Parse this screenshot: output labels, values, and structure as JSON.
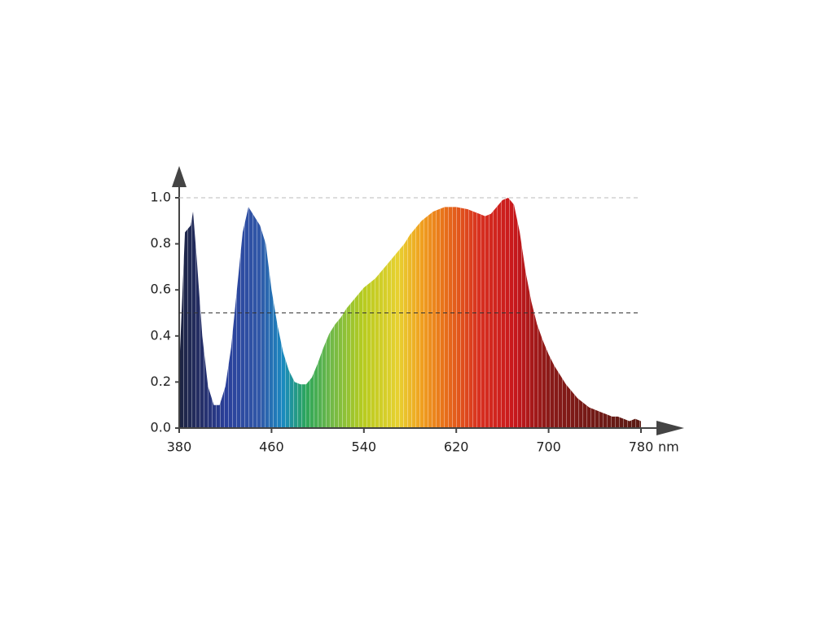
{
  "chart_data": {
    "type": "area",
    "x_label": "nm",
    "x": [
      380,
      385,
      390,
      392,
      395,
      400,
      405,
      410,
      415,
      420,
      425,
      430,
      435,
      440,
      445,
      450,
      455,
      460,
      465,
      470,
      475,
      480,
      485,
      490,
      495,
      500,
      505,
      510,
      515,
      520,
      525,
      530,
      535,
      540,
      545,
      550,
      555,
      560,
      565,
      570,
      575,
      580,
      585,
      590,
      595,
      600,
      605,
      610,
      615,
      620,
      625,
      630,
      635,
      640,
      645,
      650,
      655,
      660,
      665,
      670,
      675,
      680,
      685,
      690,
      695,
      700,
      705,
      710,
      715,
      720,
      725,
      730,
      735,
      740,
      745,
      750,
      755,
      760,
      765,
      770,
      775,
      780
    ],
    "values": [
      0.25,
      0.85,
      0.88,
      0.94,
      0.75,
      0.4,
      0.18,
      0.1,
      0.1,
      0.18,
      0.35,
      0.6,
      0.85,
      0.96,
      0.92,
      0.88,
      0.8,
      0.6,
      0.45,
      0.33,
      0.25,
      0.2,
      0.19,
      0.19,
      0.22,
      0.28,
      0.35,
      0.41,
      0.45,
      0.48,
      0.52,
      0.55,
      0.58,
      0.61,
      0.63,
      0.65,
      0.68,
      0.71,
      0.74,
      0.77,
      0.8,
      0.84,
      0.87,
      0.9,
      0.92,
      0.94,
      0.95,
      0.96,
      0.96,
      0.96,
      0.955,
      0.95,
      0.94,
      0.93,
      0.92,
      0.93,
      0.96,
      0.99,
      1.0,
      0.97,
      0.85,
      0.68,
      0.55,
      0.45,
      0.38,
      0.32,
      0.27,
      0.23,
      0.19,
      0.16,
      0.13,
      0.11,
      0.09,
      0.08,
      0.07,
      0.06,
      0.05,
      0.05,
      0.04,
      0.03,
      0.04,
      0.03
    ],
    "color_stops": [
      {
        "x": 380,
        "color": "#1c2340"
      },
      {
        "x": 400,
        "color": "#26306a"
      },
      {
        "x": 420,
        "color": "#2a3f9a"
      },
      {
        "x": 450,
        "color": "#3158a8"
      },
      {
        "x": 470,
        "color": "#1a8ac0"
      },
      {
        "x": 490,
        "color": "#2ca65a"
      },
      {
        "x": 510,
        "color": "#6cb84a"
      },
      {
        "x": 540,
        "color": "#b8cc20"
      },
      {
        "x": 570,
        "color": "#e8d030"
      },
      {
        "x": 590,
        "color": "#f0a020"
      },
      {
        "x": 610,
        "color": "#e8701a"
      },
      {
        "x": 640,
        "color": "#d83020"
      },
      {
        "x": 670,
        "color": "#c8181c"
      },
      {
        "x": 700,
        "color": "#8a1a18"
      },
      {
        "x": 780,
        "color": "#5a1a14"
      }
    ],
    "xlim": [
      380,
      780
    ],
    "ylim": [
      0,
      1
    ],
    "xticks": [
      380,
      460,
      540,
      620,
      700,
      780
    ],
    "yticks": [
      {
        "value": 0,
        "label": "0.0"
      },
      {
        "value": 0.2,
        "label": "0.2"
      },
      {
        "value": 0.4,
        "label": "0.4"
      },
      {
        "value": 0.6,
        "label": "0.6"
      },
      {
        "value": 0.8,
        "label": "0.8"
      },
      {
        "value": 1,
        "label": "1.0"
      }
    ],
    "reference_lines": [
      {
        "y": 1,
        "color": "#bbbbbb"
      },
      {
        "y": 0.5,
        "color": "#333333"
      }
    ]
  }
}
